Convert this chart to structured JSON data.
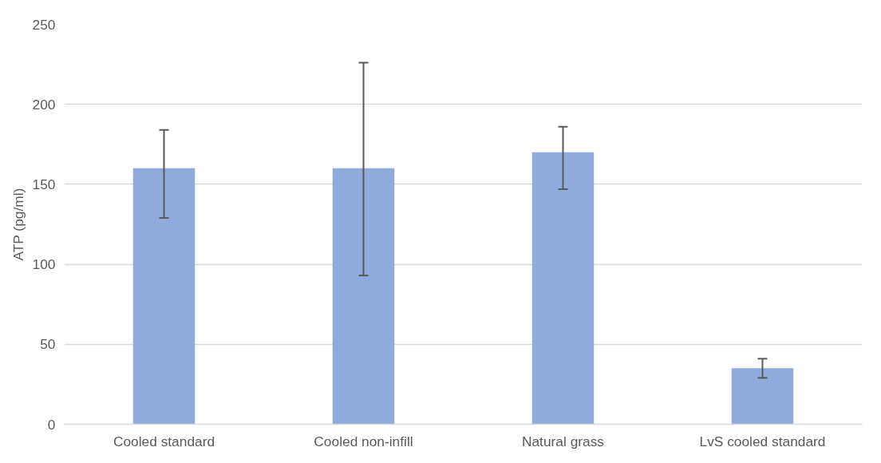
{
  "chart_data": {
    "type": "bar",
    "ylabel": "ATP (pg/ml)",
    "categories": [
      "Cooled standard",
      "Cooled non-infill",
      "Natural grass",
      "LvS cooled standard"
    ],
    "values": [
      160,
      160,
      170,
      35
    ],
    "color": "#8faadc",
    "errors": [
      [
        129,
        184
      ],
      [
        93,
        226
      ],
      [
        147,
        186
      ],
      [
        29,
        41
      ]
    ],
    "ylim": [
      0,
      250
    ],
    "yticks": [
      0,
      50,
      100,
      150,
      200,
      250
    ],
    "grid": "y"
  }
}
